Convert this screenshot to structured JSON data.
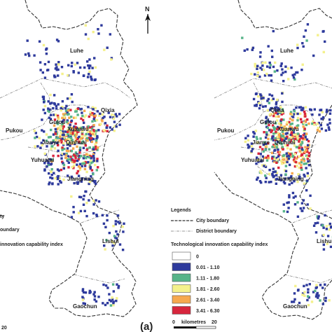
{
  "north": {
    "label": "N"
  },
  "panel_label": "(a)",
  "districts": [
    "Luhe",
    "Qixia",
    "Gulou",
    "Xuanwu",
    "Pukou",
    "Jianye",
    "Qinhuai",
    "Yuhuatai",
    "Jiangning",
    "Lishui",
    "Gaochun"
  ],
  "right_districts": [
    "Luhe",
    "Qixia",
    "Gulou",
    "Xuanwu",
    "Pukou",
    "Jianye",
    "Qinhuai",
    "Yuhuatai",
    "Jiangning",
    "Lishui",
    "Gaochun"
  ],
  "left_legend": {
    "line1": "ty",
    "line2": "oundary",
    "title": "innovation capability index",
    "scale_end": "20"
  },
  "legend": {
    "title": "Legends",
    "city_boundary": "City boundary",
    "district_boundary": "District boundary",
    "index_title": "Technological innovation capability index",
    "classes": [
      {
        "label": "0",
        "color": "#ffffff"
      },
      {
        "label": "0.01 - 1.10",
        "color": "#2e3a9c"
      },
      {
        "label": "1.11 - 1.80",
        "color": "#57b489"
      },
      {
        "label": "1.81 - 2.60",
        "color": "#f4f18c"
      },
      {
        "label": "2.61 - 3.40",
        "color": "#f6a94f"
      },
      {
        "label": "3.41 - 6.30",
        "color": "#d7263d"
      }
    ],
    "scale_start": "0",
    "scale_unit": "kilometres",
    "scale_end": "20"
  }
}
